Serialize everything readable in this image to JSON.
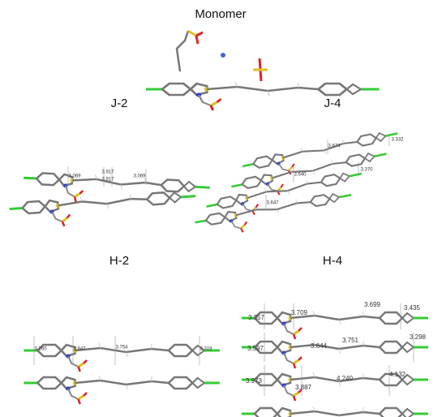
{
  "panels": [
    {
      "label": "Monomer"
    },
    {
      "label": "J-2",
      "distances": [
        "3.069",
        "3.917",
        "3.917",
        "3.069"
      ]
    },
    {
      "label": "J-4",
      "distances": [
        "3.674",
        "3.332",
        "3.640",
        "3.370",
        "3.647"
      ]
    },
    {
      "label": "H-2",
      "distances": [
        "3.260",
        "3.947",
        "3.754",
        "3.319"
      ]
    },
    {
      "label": "H-4",
      "distances": [
        "3.357",
        "3.709",
        "3.699",
        "3.435",
        "3.597",
        "3.644",
        "3.751",
        "3.298",
        "3.973",
        "3.887",
        "4.240",
        "4.132"
      ]
    }
  ]
}
